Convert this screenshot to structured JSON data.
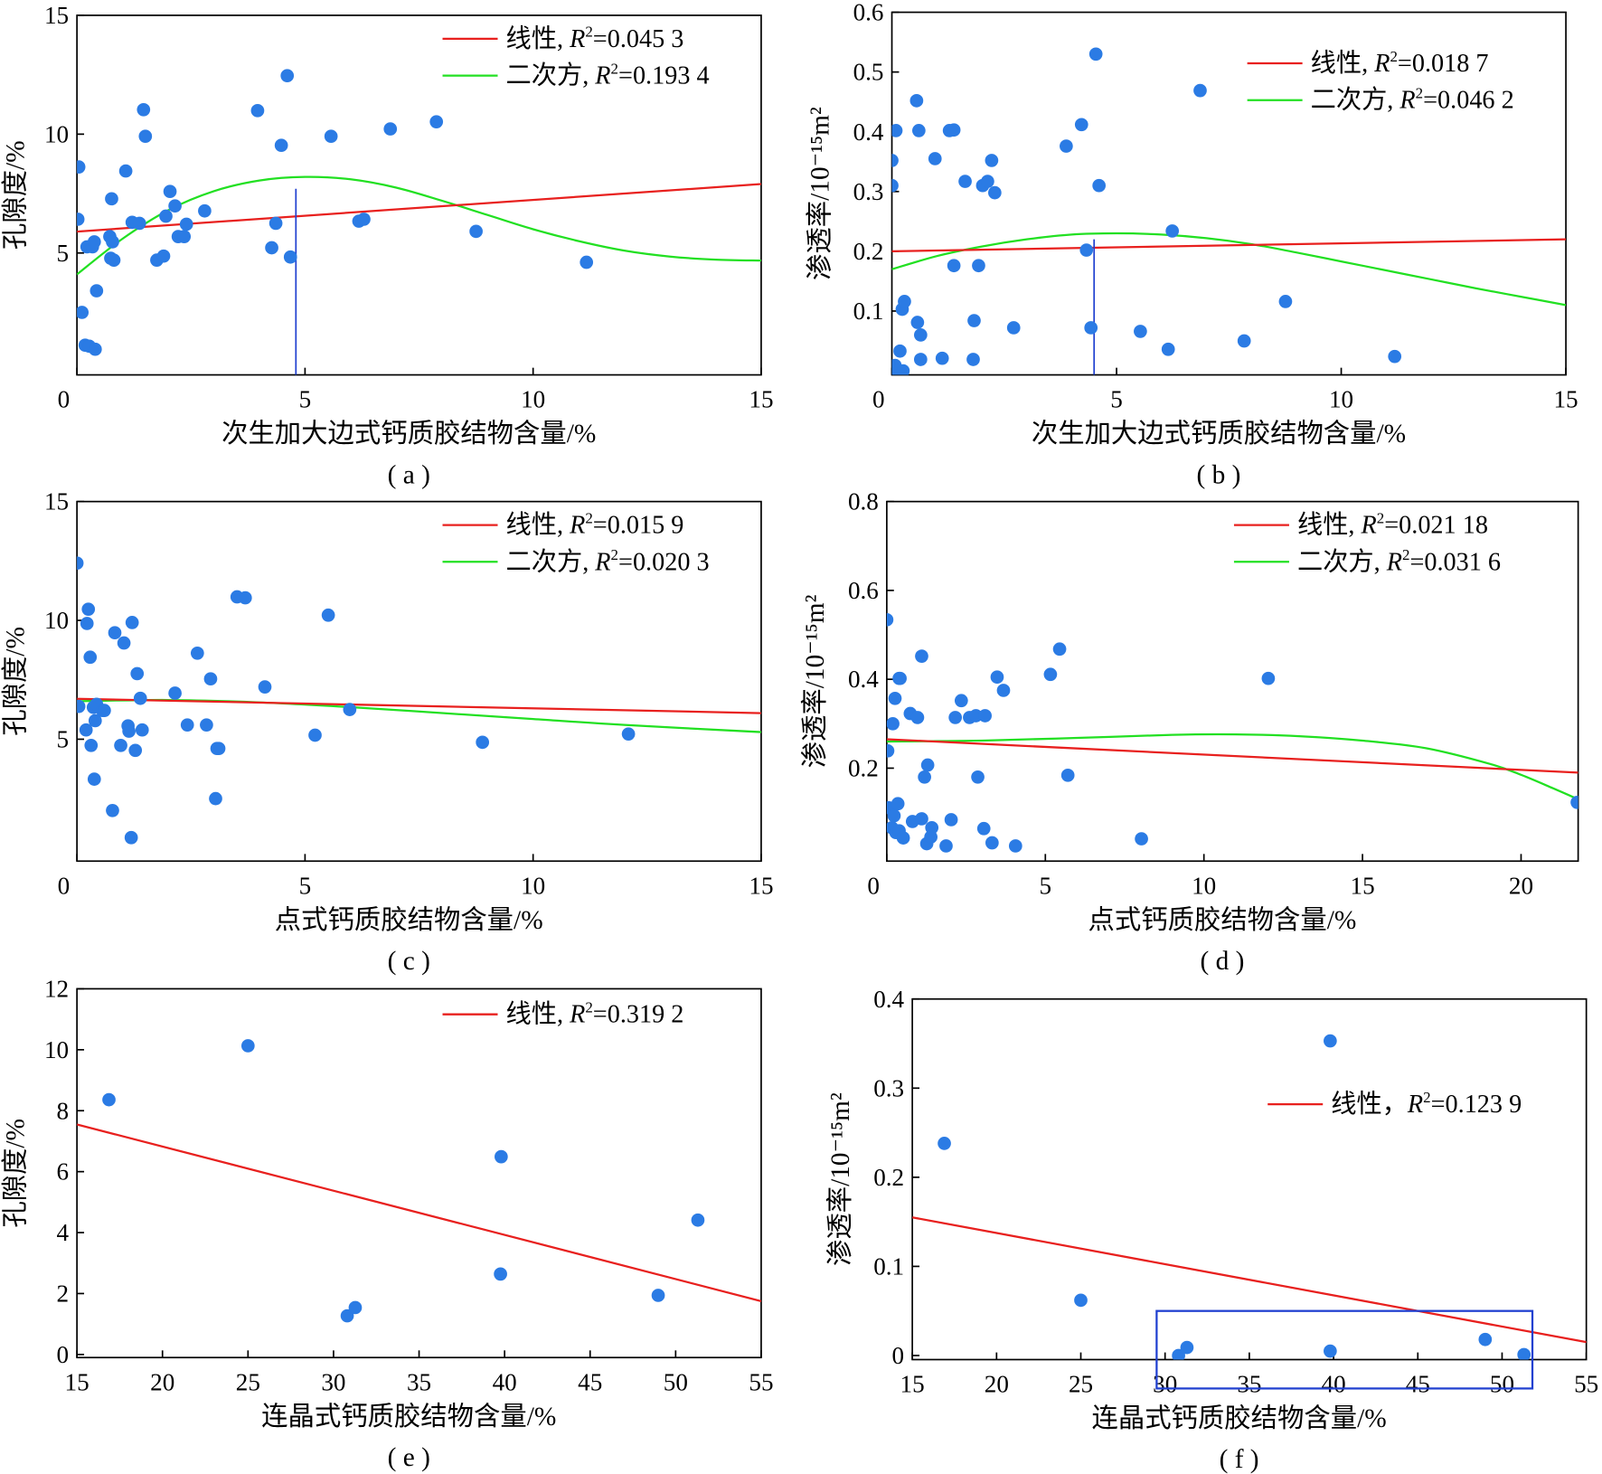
{
  "colors": {
    "points": "#2b7be4",
    "linear": "#e8201e",
    "quadratic": "#22e022",
    "marker_line": "#2040d0",
    "box": "#2040d0"
  },
  "chart_data": [
    {
      "type": "scatter",
      "panel": "( a )",
      "xlabel": "次生加大边式钙质胶结物含量/%",
      "ylabel": "孔隙度/%",
      "xlim": [
        0,
        15
      ],
      "ylim": [
        0,
        15
      ],
      "xticks": [
        "0",
        "5",
        "10",
        "15"
      ],
      "yticks": [
        "5",
        "10",
        "15"
      ],
      "legend": [
        {
          "series": "linear",
          "label": "线性, ",
          "r2": "=0.045 3"
        },
        {
          "series": "quadratic",
          "label": "二次方, ",
          "r2": "=0.193 4"
        }
      ],
      "points": [
        [
          0.02,
          6.42
        ],
        [
          0.04,
          8.62
        ],
        [
          0.11,
          2.5
        ],
        [
          0.18,
          1.12
        ],
        [
          0.22,
          5.26
        ],
        [
          0.27,
          1.08
        ],
        [
          0.34,
          5.26
        ],
        [
          0.38,
          5.47
        ],
        [
          0.4,
          0.95
        ],
        [
          0.43,
          3.41
        ],
        [
          0.72,
          5.69
        ],
        [
          0.76,
          7.28
        ],
        [
          0.74,
          4.78
        ],
        [
          0.78,
          5.47
        ],
        [
          0.81,
          4.7
        ],
        [
          1.07,
          8.45
        ],
        [
          1.21,
          6.29
        ],
        [
          1.37,
          6.25
        ],
        [
          1.46,
          11.03
        ],
        [
          1.5,
          9.91
        ],
        [
          1.75,
          4.7
        ],
        [
          1.9,
          4.87
        ],
        [
          1.95,
          6.55
        ],
        [
          2.04,
          7.59
        ],
        [
          2.15,
          6.98
        ],
        [
          2.22,
          5.69
        ],
        [
          2.35,
          5.69
        ],
        [
          2.4,
          6.21
        ],
        [
          2.8,
          6.77
        ],
        [
          3.96,
          10.99
        ],
        [
          4.27,
          5.22
        ],
        [
          4.36,
          6.25
        ],
        [
          4.48,
          9.53
        ],
        [
          4.61,
          12.46
        ],
        [
          4.68,
          4.83
        ],
        [
          5.57,
          9.91
        ],
        [
          6.18,
          6.34
        ],
        [
          6.29,
          6.42
        ],
        [
          6.87,
          10.22
        ],
        [
          7.88,
          10.52
        ],
        [
          8.75,
          5.91
        ],
        [
          11.17,
          4.61
        ]
      ],
      "linear_fit": [
        [
          0,
          5.9
        ],
        [
          15,
          7.9
        ]
      ],
      "quadratic_fit": [
        [
          0,
          4.1
        ],
        [
          1,
          5.6
        ],
        [
          2,
          6.8
        ],
        [
          3,
          7.6
        ],
        [
          4,
          8.05
        ],
        [
          5,
          8.2
        ],
        [
          6,
          8.1
        ],
        [
          7,
          7.75
        ],
        [
          8,
          7.2
        ],
        [
          9,
          6.6
        ],
        [
          10,
          6.0
        ],
        [
          11,
          5.5
        ],
        [
          12,
          5.1
        ],
        [
          13,
          4.85
        ],
        [
          14,
          4.72
        ],
        [
          15,
          4.68
        ]
      ],
      "marker_line": {
        "x": 4.8,
        "y": [
          0,
          7.7
        ]
      }
    },
    {
      "type": "scatter",
      "panel": "( b )",
      "xlabel": "次生加大边式钙质胶结物含量/%",
      "ylabel": "渗透率/10⁻¹⁵m²",
      "xlim": [
        0,
        15
      ],
      "ylim": [
        0,
        0.6
      ],
      "xticks": [
        "0",
        "5",
        "10",
        "15"
      ],
      "yticks": [
        "0.1",
        "0.2",
        "0.3",
        "0.4",
        "0.5",
        "0.6"
      ],
      "legend": [
        {
          "series": "linear",
          "label": "线性, ",
          "r2": "=0.018 7"
        },
        {
          "series": "quadratic",
          "label": "二次方, ",
          "r2": "=0.046 2"
        }
      ],
      "points": [
        [
          0,
          0.352
        ],
        [
          0,
          0.31
        ],
        [
          0.09,
          0.402
        ],
        [
          0,
          0.002
        ],
        [
          0.07,
          0.009
        ],
        [
          0.14,
          0
        ],
        [
          0.18,
          0.033
        ],
        [
          0.23,
          0.103
        ],
        [
          0.28,
          0.116
        ],
        [
          0.25,
          0
        ],
        [
          0.55,
          0.452
        ],
        [
          0.57,
          0.081
        ],
        [
          0.6,
          0.402
        ],
        [
          0.64,
          0.06
        ],
        [
          0.64,
          0.019
        ],
        [
          0.96,
          0.355
        ],
        [
          1.12,
          0.021
        ],
        [
          1.28,
          0.402
        ],
        [
          1.38,
          0.403
        ],
        [
          1.38,
          0.176
        ],
        [
          1.63,
          0.317
        ],
        [
          1.83,
          0.084
        ],
        [
          1.81,
          0.019
        ],
        [
          1.93,
          0.176
        ],
        [
          2.02,
          0.31
        ],
        [
          2.13,
          0.317
        ],
        [
          2.22,
          0.352
        ],
        [
          2.29,
          0.298
        ],
        [
          2.71,
          0.072
        ],
        [
          3.88,
          0.376
        ],
        [
          4.22,
          0.412
        ],
        [
          4.33,
          0.202
        ],
        [
          4.43,
          0.072
        ],
        [
          4.54,
          0.53
        ],
        [
          4.61,
          0.31
        ],
        [
          5.53,
          0.066
        ],
        [
          6.15,
          0.036
        ],
        [
          6.24,
          0.234
        ],
        [
          6.86,
          0.469
        ],
        [
          7.84,
          0.05
        ],
        [
          8.76,
          0.116
        ],
        [
          11.19,
          0.024
        ]
      ],
      "linear_fit": [
        [
          0,
          0.2
        ],
        [
          15,
          0.22
        ]
      ],
      "quadratic_fit": [
        [
          0,
          0.17
        ],
        [
          1,
          0.192
        ],
        [
          2,
          0.208
        ],
        [
          3,
          0.22
        ],
        [
          4,
          0.228
        ],
        [
          5,
          0.23
        ],
        [
          6,
          0.228
        ],
        [
          7,
          0.222
        ],
        [
          8,
          0.212
        ],
        [
          9,
          0.198
        ],
        [
          10,
          0.183
        ],
        [
          11,
          0.168
        ],
        [
          12,
          0.153
        ],
        [
          13,
          0.138
        ],
        [
          14,
          0.124
        ],
        [
          15,
          0.11
        ]
      ],
      "marker_line": {
        "x": 4.5,
        "y": [
          0,
          0.22
        ]
      }
    },
    {
      "type": "scatter",
      "panel": "( c )",
      "xlabel": "点式钙质胶结物含量/%",
      "ylabel": "孔隙度/%",
      "xlim": [
        0,
        15
      ],
      "ylim": [
        0,
        15
      ],
      "xticks": [
        "0",
        "5",
        "10",
        "15"
      ],
      "yticks": [
        "5",
        "10",
        "15"
      ],
      "legend": [
        {
          "series": "linear",
          "label": "线性, ",
          "r2": "=0.015 9"
        },
        {
          "series": "quadratic",
          "label": "二次方, ",
          "r2": "=0.020 3"
        }
      ],
      "points": [
        [
          0,
          12.41
        ],
        [
          0.04,
          6.38
        ],
        [
          0.2,
          5.39
        ],
        [
          0.22,
          9.87
        ],
        [
          0.25,
          10.47
        ],
        [
          0.29,
          8.45
        ],
        [
          0.31,
          4.74
        ],
        [
          0.36,
          6.34
        ],
        [
          0.38,
          3.32
        ],
        [
          0.4,
          5.78
        ],
        [
          0.43,
          6.47
        ],
        [
          0.56,
          6.21
        ],
        [
          0.6,
          6.21
        ],
        [
          0.78,
          2.0
        ],
        [
          0.83,
          9.48
        ],
        [
          0.96,
          4.74
        ],
        [
          1.03,
          9.05
        ],
        [
          1.12,
          5.56
        ],
        [
          1.14,
          5.34
        ],
        [
          1.19,
          0.86
        ],
        [
          1.21,
          9.91
        ],
        [
          1.28,
          4.53
        ],
        [
          1.32,
          7.76
        ],
        [
          1.39,
          6.72
        ],
        [
          1.43,
          5.39
        ],
        [
          2.15,
          6.94
        ],
        [
          2.42,
          5.6
        ],
        [
          2.64,
          8.62
        ],
        [
          2.84,
          5.6
        ],
        [
          2.93,
          7.54
        ],
        [
          3.04,
          2.5
        ],
        [
          3.07,
          4.61
        ],
        [
          3.11,
          4.61
        ],
        [
          3.51,
          10.99
        ],
        [
          3.69,
          10.95
        ],
        [
          4.12,
          7.2
        ],
        [
          5.22,
          5.17
        ],
        [
          5.51,
          10.22
        ],
        [
          5.98,
          6.25
        ],
        [
          8.89,
          4.87
        ],
        [
          12.09,
          5.22
        ]
      ],
      "linear_fit": [
        [
          0,
          6.7
        ],
        [
          15,
          6.1
        ]
      ],
      "quadratic_fit": [
        [
          0,
          6.6
        ],
        [
          2,
          6.65
        ],
        [
          4,
          6.55
        ],
        [
          6,
          6.35
        ],
        [
          8,
          6.1
        ],
        [
          10,
          5.85
        ],
        [
          12,
          5.6
        ],
        [
          15,
          5.3
        ]
      ]
    },
    {
      "type": "scatter",
      "panel": "( d )",
      "xlabel": "点式钙质胶结物含量/%",
      "ylabel": "渗透率/10⁻¹⁵m²",
      "xlim": [
        0,
        21.8
      ],
      "ylim": [
        0,
        0.8
      ],
      "xticks": [
        "0",
        "5",
        "10",
        "15",
        "20"
      ],
      "yticks": [
        "0.2",
        "0.4",
        "0.6",
        "0.8"
      ],
      "legend": [
        {
          "series": "linear",
          "label": "线性, ",
          "r2": "=0.021 18"
        },
        {
          "series": "quadratic",
          "label": "二次方, ",
          "r2": "=0.031 6"
        }
      ],
      "points": [
        [
          0,
          0.534
        ],
        [
          0.03,
          0.239
        ],
        [
          0.19,
          0.3
        ],
        [
          0.26,
          0.357
        ],
        [
          0.39,
          0.402
        ],
        [
          0.42,
          0.402
        ],
        [
          1.1,
          0.452
        ],
        [
          0.06,
          0.111
        ],
        [
          0.16,
          0.066
        ],
        [
          0.23,
          0.093
        ],
        [
          0.29,
          0.055
        ],
        [
          0.35,
          0.12
        ],
        [
          0.39,
          0.059
        ],
        [
          0.52,
          0.043
        ],
        [
          0.74,
          0.323
        ],
        [
          0.81,
          0.08
        ],
        [
          0.97,
          0.314
        ],
        [
          1.1,
          0.086
        ],
        [
          1.19,
          0.18
        ],
        [
          1.29,
          0.207
        ],
        [
          1.26,
          0.03
        ],
        [
          1.39,
          0.045
        ],
        [
          1.42,
          0.066
        ],
        [
          1.87,
          0.025
        ],
        [
          2.03,
          0.084
        ],
        [
          2.16,
          0.314
        ],
        [
          2.35,
          0.352
        ],
        [
          2.61,
          0.314
        ],
        [
          2.81,
          0.318
        ],
        [
          2.87,
          0.18
        ],
        [
          3.06,
          0.064
        ],
        [
          3.1,
          0.318
        ],
        [
          3.32,
          0.032
        ],
        [
          3.48,
          0.405
        ],
        [
          3.68,
          0.375
        ],
        [
          4.06,
          0.025
        ],
        [
          5.16,
          0.411
        ],
        [
          5.45,
          0.468
        ],
        [
          5.71,
          0.184
        ],
        [
          8.03,
          0.041
        ],
        [
          12.03,
          0.402
        ],
        [
          21.77,
          0.123
        ]
      ],
      "linear_fit": [
        [
          0,
          0.265
        ],
        [
          21.8,
          0.19
        ]
      ],
      "quadratic_fit": [
        [
          0,
          0.26
        ],
        [
          3,
          0.262
        ],
        [
          6,
          0.268
        ],
        [
          9,
          0.275
        ],
        [
          11,
          0.276
        ],
        [
          13,
          0.272
        ],
        [
          15,
          0.262
        ],
        [
          17,
          0.245
        ],
        [
          19,
          0.21
        ],
        [
          20,
          0.185
        ],
        [
          21,
          0.155
        ],
        [
          21.8,
          0.13
        ]
      ]
    },
    {
      "type": "scatter",
      "panel": "( e )",
      "xlabel": "连晶式钙质胶结物含量/%",
      "ylabel": "孔隙度/%",
      "xlim": [
        15,
        55
      ],
      "ylim": [
        0,
        12
      ],
      "xticks": [
        "15",
        "20",
        "25",
        "30",
        "35",
        "40",
        "45",
        "50",
        "55"
      ],
      "yticks": [
        "0",
        "2",
        "4",
        "6",
        "8",
        "10",
        "12"
      ],
      "legend": [
        {
          "series": "linear",
          "label": "线性, ",
          "r2": "=0.319 2"
        }
      ],
      "points": [
        [
          16.87,
          8.36
        ],
        [
          25.0,
          10.13
        ],
        [
          30.8,
          1.27
        ],
        [
          31.27,
          1.54
        ],
        [
          39.8,
          6.49
        ],
        [
          39.76,
          2.64
        ],
        [
          48.98,
          1.94
        ],
        [
          51.3,
          4.41
        ]
      ],
      "linear_fit": [
        [
          15,
          7.55
        ],
        [
          55,
          1.75
        ]
      ]
    },
    {
      "type": "scatter",
      "panel": "( f )",
      "xlabel": "连晶式钙质胶结物含量/%",
      "ylabel": "渗透率/10⁻¹⁵m²",
      "xlim": [
        15,
        55
      ],
      "ylim": [
        0,
        0.4
      ],
      "xticks": [
        "15",
        "20",
        "25",
        "30",
        "35",
        "40",
        "45",
        "50",
        "55"
      ],
      "yticks": [
        "0",
        "0.1",
        "0.2",
        "0.3",
        "0.4"
      ],
      "legend": [
        {
          "series": "linear",
          "label": "线性，",
          "r2": "=0.123 9"
        }
      ],
      "points": [
        [
          39.8,
          0.353
        ],
        [
          16.9,
          0.238
        ],
        [
          25.0,
          0.062
        ],
        [
          31.3,
          0.009
        ],
        [
          30.8,
          0
        ],
        [
          39.8,
          0.005
        ],
        [
          49.0,
          0.018
        ],
        [
          51.3,
          0.001
        ]
      ],
      "linear_fit": [
        [
          15,
          0.155
        ],
        [
          55,
          0.015
        ]
      ],
      "highlight_box": {
        "x": [
          29.5,
          51.8
        ],
        "y": [
          -0.037,
          0.05
        ]
      }
    }
  ]
}
